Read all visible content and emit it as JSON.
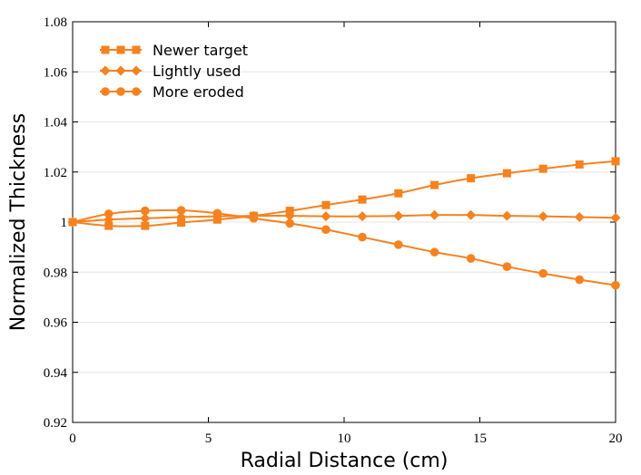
{
  "chart_data": {
    "type": "line",
    "title": "",
    "xlabel": "Radial Distance (cm)",
    "ylabel": "Normalized Thickness",
    "xlim": [
      0,
      20
    ],
    "ylim": [
      0.92,
      1.08
    ],
    "xticks": [
      0,
      5,
      10,
      15,
      20
    ],
    "xtick_labels": [
      "0",
      "5",
      "10",
      "15",
      "20"
    ],
    "yticks": [
      0.92,
      0.94,
      0.96,
      0.98,
      1.0,
      1.02,
      1.04,
      1.06,
      1.08
    ],
    "ytick_labels": [
      "0.92",
      "0.94",
      "0.96",
      "0.98",
      "1",
      "1.02",
      "1.04",
      "1.06",
      "1.08"
    ],
    "grid": "horizontal",
    "legend_position": "top-left",
    "line_color": "#f5821f",
    "x": [
      0,
      1.33,
      2.67,
      4.0,
      5.33,
      6.67,
      8.0,
      9.33,
      10.67,
      12.0,
      13.33,
      14.67,
      16.0,
      17.33,
      18.67,
      20.0
    ],
    "series": [
      {
        "name": "Newer target",
        "marker": "square",
        "values": [
          1.0,
          0.9985,
          0.9985,
          0.9998,
          1.001,
          1.0025,
          1.0045,
          1.0068,
          1.009,
          1.0115,
          1.0148,
          1.0175,
          1.0195,
          1.0213,
          1.023,
          1.0243
        ]
      },
      {
        "name": "Lightly used",
        "marker": "diamond",
        "values": [
          1.0,
          1.001,
          1.0015,
          1.002,
          1.0023,
          1.0025,
          1.0025,
          1.0023,
          1.0023,
          1.0025,
          1.0028,
          1.0028,
          1.0025,
          1.0023,
          1.002,
          1.0017
        ]
      },
      {
        "name": "More eroded",
        "marker": "circle",
        "values": [
          1.0,
          1.0033,
          1.0045,
          1.0047,
          1.0035,
          1.0015,
          0.9995,
          0.997,
          0.994,
          0.991,
          0.988,
          0.9855,
          0.9822,
          0.9795,
          0.977,
          0.9748
        ]
      }
    ]
  }
}
